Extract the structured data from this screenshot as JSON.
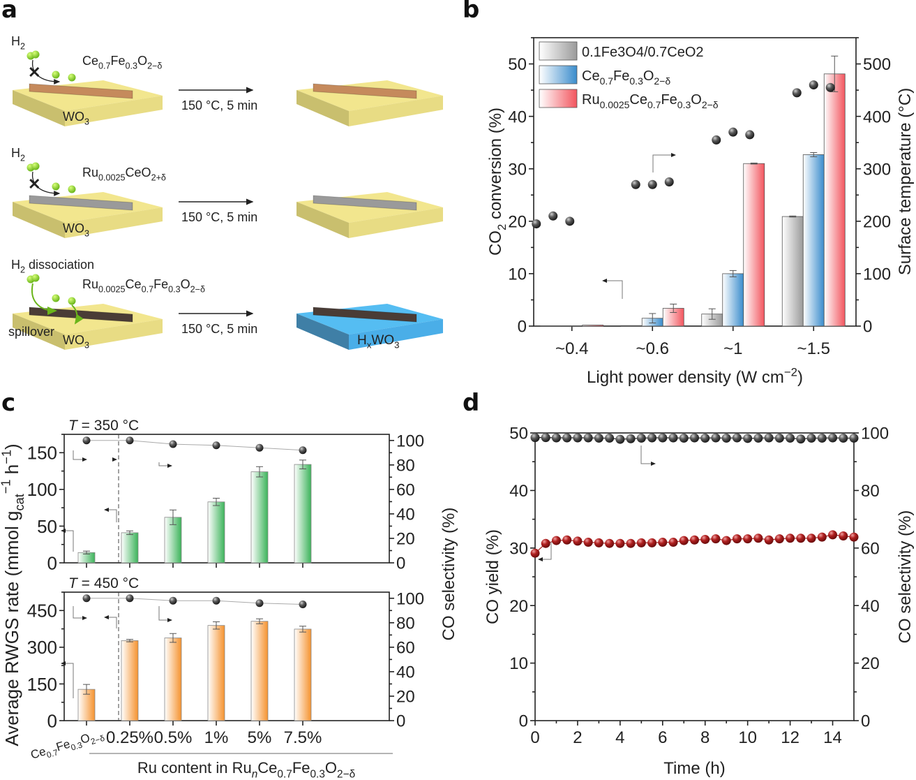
{
  "panels": {
    "a": {
      "label": "a",
      "rows": [
        {
          "gas": "H2",
          "catalyst": "Ce0.7Fe0.3O2−δ",
          "support": "WO3",
          "condition": "150 °C, 5 min",
          "product": "",
          "blocked": true,
          "rod_color": "#c58a5c",
          "product_color": "#f0e68c"
        },
        {
          "gas": "H2",
          "catalyst": "Ru0.0025CeO2+δ",
          "support": "WO3",
          "condition": "150 °C, 5 min",
          "product": "",
          "blocked": true,
          "rod_color": "#9a9a9a",
          "product_color": "#f0e68c"
        },
        {
          "gas": "H2 dissociation",
          "catalyst": "Ru0.0025Ce0.7Fe0.3O2−δ",
          "support": "WO3",
          "condition": "150 °C, 5 min",
          "product": "HxWO3",
          "blocked": false,
          "spillover": "spillover",
          "rod_color": "#4a3c36",
          "product_color": "#55bdf2"
        }
      ]
    },
    "b": {
      "label": "b"
    },
    "c": {
      "label": "c"
    },
    "d": {
      "label": "d"
    }
  },
  "chart_data": [
    {
      "id": "b",
      "type": "bar",
      "xlabel": "Light power density (W cm−2)",
      "ylabel": "CO2 conversion (%)",
      "y2label": "Surface temperature (°C)",
      "categories": [
        "~0.4",
        "~0.6",
        "~1",
        "~1.5"
      ],
      "ylim": [
        0,
        55
      ],
      "yticks": [
        0,
        10,
        20,
        30,
        40,
        50
      ],
      "y2lim": [
        0,
        550
      ],
      "y2ticks": [
        0,
        100,
        200,
        300,
        400,
        500
      ],
      "legend_position": "top-left",
      "series": [
        {
          "name": "0.1Fe3O4/0.7CeO2",
          "color": "#9a9a9a",
          "values": [
            0,
            0.1,
            2.3,
            20.9
          ],
          "errors": [
            0,
            0,
            1.0,
            0.1
          ]
        },
        {
          "name": "Ce0.7Fe0.3O2−δ",
          "color": "#3a8ccc",
          "values": [
            0,
            1.5,
            10.0,
            32.7
          ],
          "errors": [
            0,
            0.9,
            0.6,
            0.4
          ]
        },
        {
          "name": "Ru0.0025Ce0.7Fe0.3O2−δ",
          "color": "#f2555e",
          "values": [
            0.2,
            3.4,
            31.0,
            48.1
          ],
          "errors": [
            0,
            0.8,
            0.1,
            3.4
          ]
        }
      ],
      "temperature_series": {
        "name": "Surface temperature",
        "axis": "right",
        "values": [
          [
            195,
            210,
            200
          ],
          [
            270,
            270,
            275
          ],
          [
            355,
            370,
            365
          ],
          [
            445,
            460,
            455
          ]
        ]
      }
    },
    {
      "id": "c-top",
      "type": "bar",
      "annotation": "T = 350 °C",
      "ylabel": "Average RWGS rate (mmol gcat−1 h−1)",
      "y2label": "CO selectivity (%)",
      "xlabel": "Ru content in RunCe0.7Fe0.3O2−δ",
      "categories": [
        "Ce0.7Fe0.3O2−δ",
        "0.25%",
        "0.5%",
        "1%",
        "5%",
        "7.5%"
      ],
      "ylim": [
        0,
        175
      ],
      "yticks": [
        0,
        50,
        100,
        150
      ],
      "y2lim": [
        0,
        105
      ],
      "y2ticks": [
        0,
        20,
        40,
        60,
        80,
        100
      ],
      "color": "#3cb35a",
      "rate": [
        14,
        41,
        62,
        83,
        124,
        134
      ],
      "rate_error": [
        2,
        2.5,
        10,
        5,
        7,
        6
      ],
      "selectivity": [
        100,
        100,
        97,
        96,
        94,
        92
      ]
    },
    {
      "id": "c-bottom",
      "type": "bar",
      "annotation": "T = 450 °C",
      "categories": [
        "Ce0.7Fe0.3O2−δ",
        "0.25%",
        "0.5%",
        "1%",
        "5%",
        "7.5%"
      ],
      "ylim": [
        0,
        525
      ],
      "yticks": [
        0,
        150,
        300,
        450
      ],
      "y2lim": [
        0,
        105
      ],
      "y2ticks": [
        0,
        20,
        40,
        60,
        80,
        100
      ],
      "color": "#f5922e",
      "rate": [
        128,
        327,
        338,
        389,
        406,
        374
      ],
      "rate_error": [
        20,
        5,
        18,
        15,
        10,
        12
      ],
      "selectivity": [
        100,
        100,
        98,
        98,
        96,
        95
      ]
    },
    {
      "id": "d",
      "type": "line",
      "xlabel": "Time (h)",
      "ylabel": "CO yield (%)",
      "y2label": "CO selectivity (%)",
      "xlim": [
        0,
        15
      ],
      "xticks": [
        0,
        2,
        4,
        6,
        8,
        10,
        12,
        14
      ],
      "ylim": [
        0,
        50
      ],
      "yticks": [
        0,
        10,
        20,
        30,
        40,
        50
      ],
      "y2lim": [
        0,
        100
      ],
      "y2ticks": [
        0,
        20,
        40,
        60,
        80,
        100
      ],
      "x": [
        0,
        0.5,
        1,
        1.5,
        2,
        2.5,
        3,
        3.5,
        4,
        4.5,
        5,
        5.5,
        6,
        6.5,
        7,
        7.5,
        8,
        8.5,
        9,
        9.5,
        10,
        10.5,
        11,
        11.5,
        12,
        12.5,
        13,
        13.5,
        14,
        14.5,
        15
      ],
      "series": [
        {
          "name": "CO yield",
          "axis": "left",
          "color": "#a01c1c",
          "values": [
            29.1,
            30.8,
            31.3,
            31.4,
            31.2,
            31.0,
            30.9,
            30.8,
            30.8,
            30.8,
            30.9,
            30.9,
            31.0,
            31.0,
            31.3,
            31.4,
            31.5,
            31.6,
            31.3,
            31.6,
            31.6,
            31.7,
            31.4,
            31.6,
            31.7,
            31.7,
            31.7,
            31.9,
            32.3,
            32.1,
            31.9
          ]
        },
        {
          "name": "CO selectivity",
          "axis": "right",
          "color": "#1a1a1a",
          "values": [
            98.4,
            98.4,
            98.3,
            98.3,
            98.3,
            98.3,
            98.2,
            98.2,
            97.8,
            98.0,
            98.2,
            98.3,
            98.3,
            98.3,
            98.2,
            98.3,
            98.2,
            98.3,
            98.2,
            98.3,
            98.1,
            98.2,
            98.3,
            98.2,
            98.2,
            97.9,
            98.2,
            98.2,
            98.3,
            98.2,
            98.2
          ]
        }
      ]
    }
  ]
}
